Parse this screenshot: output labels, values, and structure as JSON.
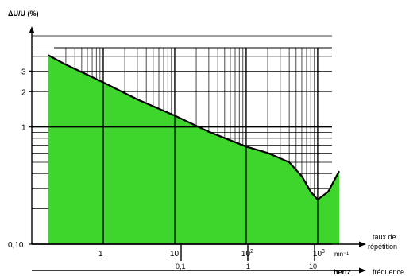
{
  "chart_data": {
    "type": "area",
    "title": "",
    "ylabel": "ΔU/U (%)",
    "y_scale": "log",
    "ylim": [
      0.1,
      6
    ],
    "y_ticks": [
      {
        "value": 0.1,
        "label": "0,10"
      },
      {
        "value": 1,
        "label": "1"
      },
      {
        "value": 2,
        "label": "2"
      },
      {
        "value": 3,
        "label": "3"
      }
    ],
    "x_axis_top": {
      "label_line1": "taux de",
      "label_line2": "répétition",
      "unit": "mn⁻¹",
      "scale": "log",
      "range": [
        0.1,
        2000
      ],
      "ticks": [
        {
          "value": 1,
          "base": "1",
          "exp": ""
        },
        {
          "value": 10,
          "base": "10",
          "exp": ""
        },
        {
          "value": 100,
          "base": "10",
          "exp": "2"
        },
        {
          "value": 1000,
          "base": "10",
          "exp": "3"
        }
      ]
    },
    "x_axis_bottom": {
      "label": "fréquence",
      "unit": "hertz",
      "ticks": [
        "0,1",
        "1",
        "10"
      ]
    },
    "series": [
      {
        "x": [
          0.17,
          0.3,
          1,
          3,
          10,
          30,
          100,
          200,
          400,
          600,
          800,
          1000,
          1400,
          2000
        ],
        "y": [
          4.1,
          3.4,
          2.4,
          1.72,
          1.25,
          0.91,
          0.68,
          0.6,
          0.5,
          0.38,
          0.28,
          0.24,
          0.28,
          0.42
        ]
      }
    ],
    "grid": true,
    "colors": {
      "fill": "#3ed62c",
      "line": "#000000",
      "grid": "#000000"
    }
  }
}
